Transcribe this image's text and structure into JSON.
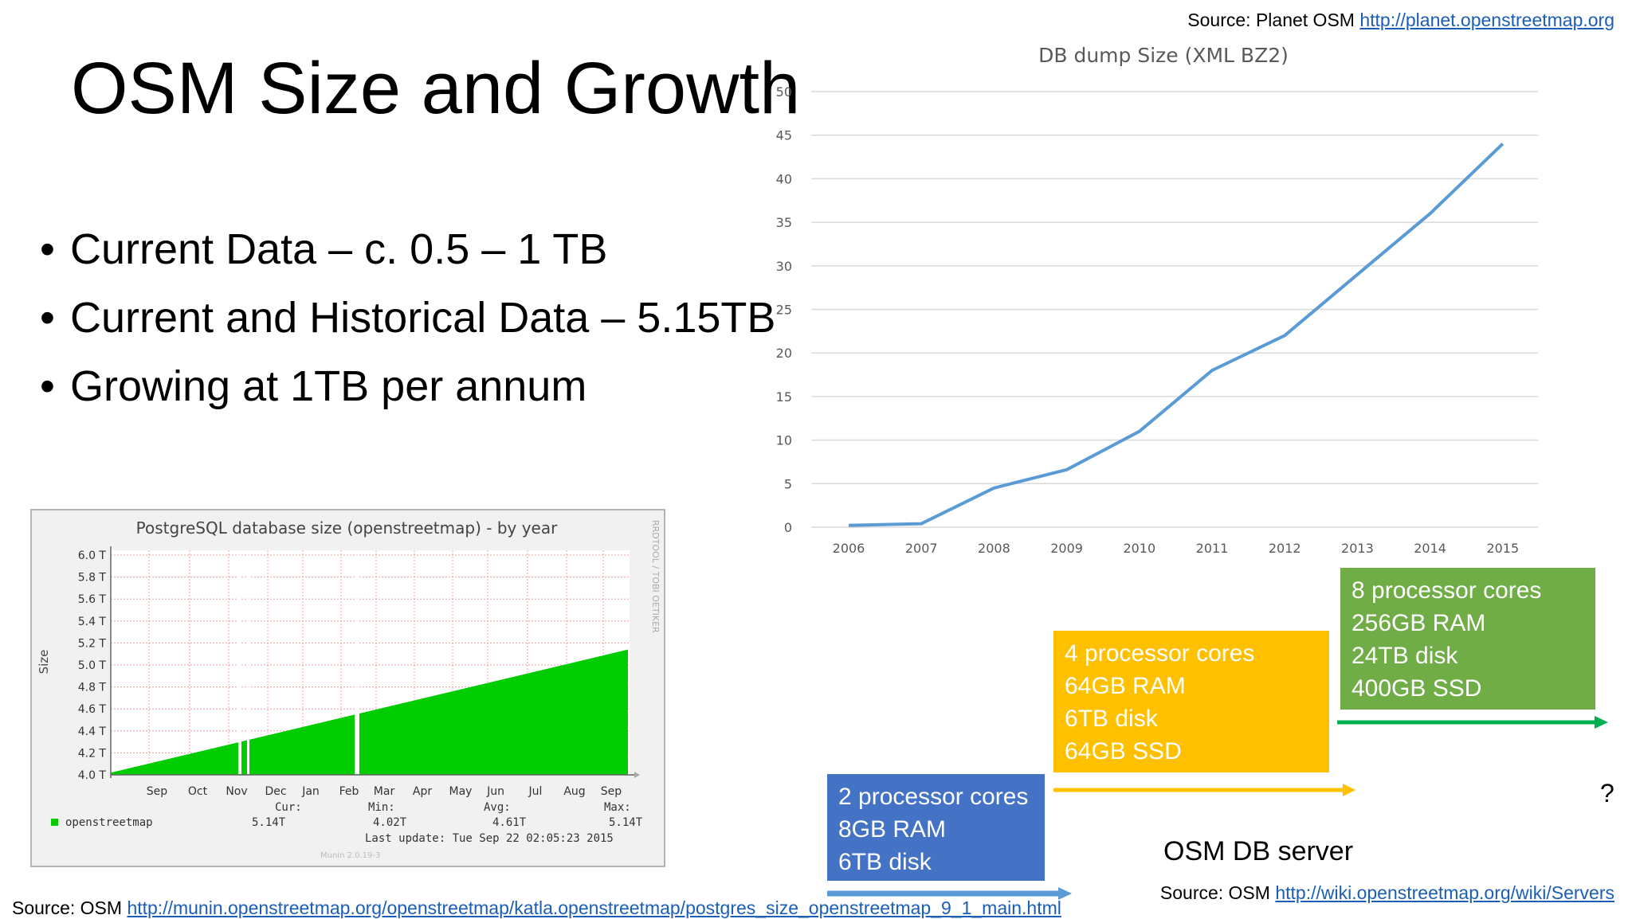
{
  "slide": {
    "title": "OSM Size and Growth",
    "bullets": [
      "Current Data – c. 0.5 – 1 TB",
      "Current and Historical Data – 5.15TB",
      "Growing at 1TB per annum"
    ],
    "source_top": {
      "prefix": "Source: Planet OSM ",
      "link": "http://planet.openstreetmap.org"
    },
    "source_bottom": {
      "prefix": "Source: OSM ",
      "link": "http://munin.openstreetmap.org/openstreetmap/katla.openstreetmap/postgres_size_openstreetmap_9_1_main.html"
    },
    "source_right": {
      "prefix": "Source: OSM ",
      "link": "http://wiki.openstreetmap.org/wiki/Servers"
    }
  },
  "chart_data": [
    {
      "type": "line",
      "title": "DB dump Size (XML BZ2)",
      "x": [
        2006,
        2007,
        2008,
        2009,
        2010,
        2011,
        2012,
        2013,
        2014,
        2015
      ],
      "series": [
        {
          "values": [
            0.2,
            0.4,
            4.5,
            6.6,
            11,
            18,
            22,
            29,
            36,
            44
          ]
        }
      ],
      "ylim": [
        0,
        50
      ],
      "yticks": [
        0,
        5,
        10,
        15,
        20,
        25,
        30,
        35,
        40,
        45,
        50
      ],
      "grid": true,
      "color": "#5b9bd5"
    },
    {
      "type": "area",
      "title": "PostgreSQL database size (openstreetmap) - by year",
      "ylabel": "Size",
      "yticks": [
        "4.0 T",
        "4.2 T",
        "4.4 T",
        "4.6 T",
        "4.8 T",
        "5.0 T",
        "5.2 T",
        "5.4 T",
        "5.6 T",
        "5.8 T",
        "6.0 T"
      ],
      "ylim": [
        4.0,
        6.0
      ],
      "xticks": [
        "Sep",
        "Oct",
        "Nov",
        "Dec",
        "Jan",
        "Feb",
        "Mar",
        "Apr",
        "May",
        "Jun",
        "Jul",
        "Aug",
        "Sep"
      ],
      "start_value": 4.02,
      "end_value": 5.14,
      "color": "#00cc00",
      "side_label": "RRDTOOL / TOBI OETIKER",
      "legend": {
        "series_name": "openstreetmap",
        "cur_label": "Cur:",
        "cur": "5.14T",
        "min_label": "Min:",
        "min": "4.02T",
        "avg_label": "Avg:",
        "avg": "4.61T",
        "max_label": "Max:",
        "max": "5.14T",
        "last_update": "Last update:  Tue Sep 22 02:05:23 2015",
        "footer": "Munin 2.0.19-3"
      }
    }
  ],
  "servers": {
    "label": "OSM DB server",
    "question": "?",
    "boxes": [
      {
        "lines": [
          "2 processor cores",
          "8GB RAM",
          "6TB disk"
        ],
        "color": "#4472c4"
      },
      {
        "lines": [
          "4 processor cores",
          "64GB RAM",
          "6TB disk",
          "64GB SSD"
        ],
        "color": "#ffc000"
      },
      {
        "lines": [
          "8 processor cores",
          "256GB RAM",
          "24TB disk",
          "400GB SSD"
        ],
        "color": "#70ad47"
      }
    ],
    "arrow_colors": [
      "#5b9bd5",
      "#ffc000",
      "#00b050"
    ]
  }
}
